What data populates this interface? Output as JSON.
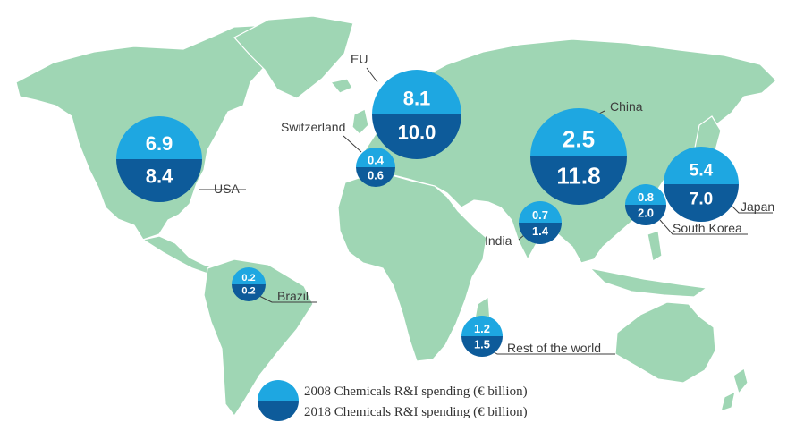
{
  "legend": {
    "item_2008": "2008 Chemicals R&I spending (€ billion)",
    "item_2018": "2018 Chemicals R&I spending (€ billion)",
    "color_2008": "#1ea7e1",
    "color_2018": "#0d5b9a"
  },
  "regions": [
    {
      "id": "usa",
      "label": "USA",
      "v2008": "6.9",
      "v2018": "8.4"
    },
    {
      "id": "eu",
      "label": "EU",
      "v2008": "8.1",
      "v2018": "10.0"
    },
    {
      "id": "switzerland",
      "label": "Switzerland",
      "v2008": "0.4",
      "v2018": "0.6"
    },
    {
      "id": "china",
      "label": "China",
      "v2008": "2.5",
      "v2018": "11.8"
    },
    {
      "id": "japan",
      "label": "Japan",
      "v2008": "5.4",
      "v2018": "7.0"
    },
    {
      "id": "south-korea",
      "label": "South Korea",
      "v2008": "0.8",
      "v2018": "2.0"
    },
    {
      "id": "india",
      "label": "India",
      "v2008": "0.7",
      "v2018": "1.4"
    },
    {
      "id": "brazil",
      "label": "Brazil",
      "v2008": "0.2",
      "v2018": "0.2"
    },
    {
      "id": "rest-of-world",
      "label": "Rest of the world",
      "v2008": "1.2",
      "v2018": "1.5"
    }
  ],
  "land_color": "#9fd6b4"
}
